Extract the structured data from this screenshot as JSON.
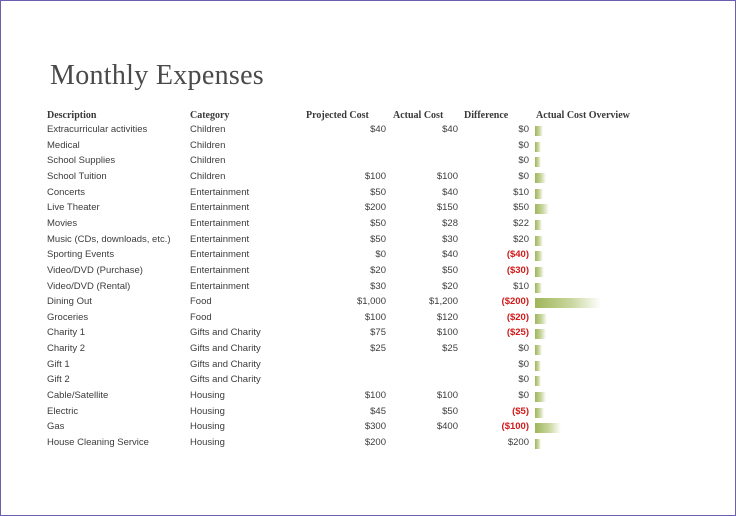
{
  "title": "Monthly Expenses",
  "headers": {
    "description": "Description",
    "category": "Category",
    "projected": "Projected Cost",
    "actual": "Actual Cost",
    "difference": "Difference",
    "overview": "Actual Cost Overview"
  },
  "colors": {
    "negative": "#d11a1a",
    "bar": "#9fb55a",
    "frame": "#6b5fb0"
  },
  "rows": [
    {
      "description": "Extracurricular activities",
      "category": "Children",
      "projected": "$40",
      "actual": "$40",
      "difference": "$0",
      "negative": false,
      "actual_value": 40
    },
    {
      "description": "Medical",
      "category": "Children",
      "projected": "",
      "actual": "",
      "difference": "$0",
      "negative": false,
      "actual_value": 0
    },
    {
      "description": "School Supplies",
      "category": "Children",
      "projected": "",
      "actual": "",
      "difference": "$0",
      "negative": false,
      "actual_value": 0
    },
    {
      "description": "School Tuition",
      "category": "Children",
      "projected": "$100",
      "actual": "$100",
      "difference": "$0",
      "negative": false,
      "actual_value": 100
    },
    {
      "description": "Concerts",
      "category": "Entertainment",
      "projected": "$50",
      "actual": "$40",
      "difference": "$10",
      "negative": false,
      "actual_value": 40
    },
    {
      "description": "Live Theater",
      "category": "Entertainment",
      "projected": "$200",
      "actual": "$150",
      "difference": "$50",
      "negative": false,
      "actual_value": 150
    },
    {
      "description": "Movies",
      "category": "Entertainment",
      "projected": "$50",
      "actual": "$28",
      "difference": "$22",
      "negative": false,
      "actual_value": 28
    },
    {
      "description": "Music (CDs, downloads, etc.)",
      "category": "Entertainment",
      "projected": "$50",
      "actual": "$30",
      "difference": "$20",
      "negative": false,
      "actual_value": 30
    },
    {
      "description": "Sporting Events",
      "category": "Entertainment",
      "projected": "$0",
      "actual": "$40",
      "difference": "($40)",
      "negative": true,
      "actual_value": 40
    },
    {
      "description": "Video/DVD (Purchase)",
      "category": "Entertainment",
      "projected": "$20",
      "actual": "$50",
      "difference": "($30)",
      "negative": true,
      "actual_value": 50
    },
    {
      "description": "Video/DVD (Rental)",
      "category": "Entertainment",
      "projected": "$30",
      "actual": "$20",
      "difference": "$10",
      "negative": false,
      "actual_value": 20
    },
    {
      "description": "Dining Out",
      "category": "Food",
      "projected": "$1,000",
      "actual": "$1,200",
      "difference": "($200)",
      "negative": true,
      "actual_value": 1200
    },
    {
      "description": "Groceries",
      "category": "Food",
      "projected": "$100",
      "actual": "$120",
      "difference": "($20)",
      "negative": true,
      "actual_value": 120
    },
    {
      "description": "Charity 1",
      "category": "Gifts and Charity",
      "projected": "$75",
      "actual": "$100",
      "difference": "($25)",
      "negative": true,
      "actual_value": 100
    },
    {
      "description": "Charity 2",
      "category": "Gifts and Charity",
      "projected": "$25",
      "actual": "$25",
      "difference": "$0",
      "negative": false,
      "actual_value": 25
    },
    {
      "description": "Gift 1",
      "category": "Gifts and Charity",
      "projected": "",
      "actual": "",
      "difference": "$0",
      "negative": false,
      "actual_value": 0
    },
    {
      "description": "Gift 2",
      "category": "Gifts and Charity",
      "projected": "",
      "actual": "",
      "difference": "$0",
      "negative": false,
      "actual_value": 0
    },
    {
      "description": "Cable/Satellite",
      "category": "Housing",
      "projected": "$100",
      "actual": "$100",
      "difference": "$0",
      "negative": false,
      "actual_value": 100
    },
    {
      "description": "Electric",
      "category": "Housing",
      "projected": "$45",
      "actual": "$50",
      "difference": "($5)",
      "negative": true,
      "actual_value": 50
    },
    {
      "description": "Gas",
      "category": "Housing",
      "projected": "$300",
      "actual": "$400",
      "difference": "($100)",
      "negative": true,
      "actual_value": 400
    },
    {
      "description": "House Cleaning Service",
      "category": "Housing",
      "projected": "$200",
      "actual": "",
      "difference": "$200",
      "negative": false,
      "actual_value": 0
    }
  ]
}
